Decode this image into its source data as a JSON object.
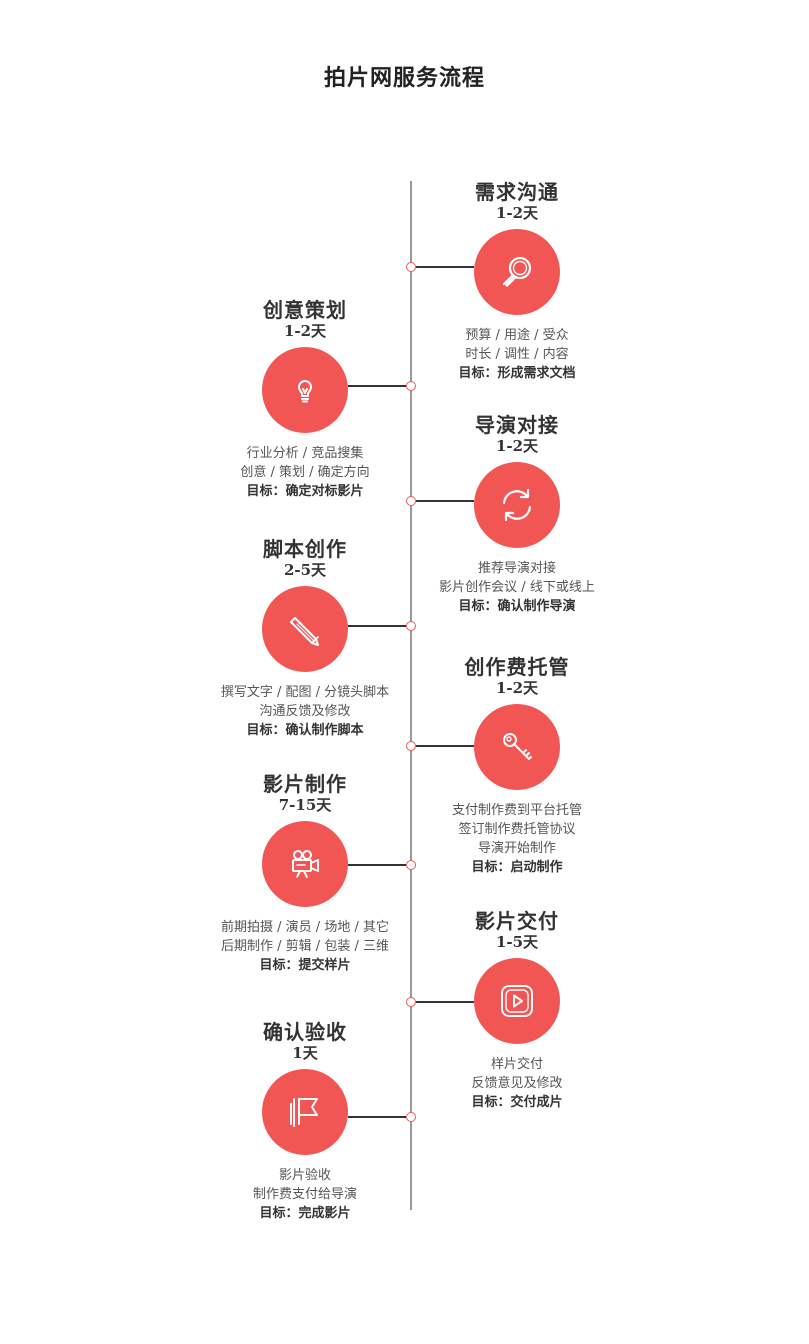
{
  "title": "拍片网服务流程",
  "theme": {
    "accent": "#f25654",
    "line": "#9a9a9a"
  },
  "steps": [
    {
      "title": "需求沟通",
      "duration": "1-2天",
      "icon": "search-icon",
      "side": "right",
      "lines": [
        "预算 / 用途 / 受众",
        "时长 / 调性 / 内容"
      ],
      "goal": "目标：形成需求文档"
    },
    {
      "title": "创意策划",
      "duration": "1-2天",
      "icon": "lightbulb-icon",
      "side": "left",
      "lines": [
        "行业分析 / 竞品搜集",
        "创意 / 策划 / 确定方向"
      ],
      "goal": "目标：确定对标影片"
    },
    {
      "title": "导演对接",
      "duration": "1-2天",
      "icon": "refresh-icon",
      "side": "right",
      "lines": [
        "推荐导演对接",
        "影片创作会议 / 线下或线上"
      ],
      "goal": "目标：确认制作导演"
    },
    {
      "title": "脚本创作",
      "duration": "2-5天",
      "icon": "pencil-icon",
      "side": "left",
      "lines": [
        "撰写文字 / 配图 / 分镜头脚本",
        "沟通反馈及修改"
      ],
      "goal": "目标：确认制作脚本"
    },
    {
      "title": "创作费托管",
      "duration": "1-2天",
      "icon": "key-icon",
      "side": "right",
      "lines": [
        "支付制作费到平台托管",
        "签订制作费托管协议",
        "导演开始制作"
      ],
      "goal": "目标：启动制作"
    },
    {
      "title": "影片制作",
      "duration": "7-15天",
      "icon": "movie-camera-icon",
      "side": "left",
      "lines": [
        "前期拍摄 / 演员 / 场地 / 其它",
        "后期制作 / 剪辑 / 包装 / 三维"
      ],
      "goal": "目标：提交样片"
    },
    {
      "title": "影片交付",
      "duration": "1-5天",
      "icon": "play-icon",
      "side": "right",
      "lines": [
        "样片交付",
        "反馈意见及修改"
      ],
      "goal": "目标：交付成片"
    },
    {
      "title": "确认验收",
      "duration": "1天",
      "icon": "flag-icon",
      "side": "left",
      "lines": [
        "影片验收",
        "制作费支付给导演"
      ],
      "goal": "目标：完成影片"
    }
  ]
}
